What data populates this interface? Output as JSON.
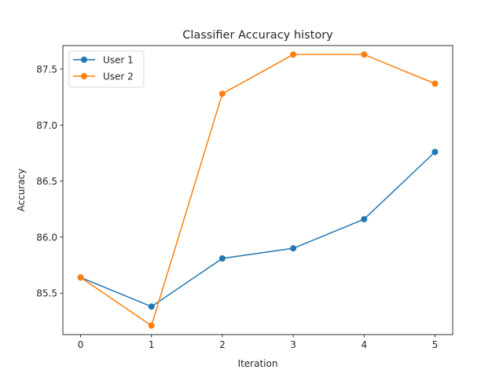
{
  "chart_data": {
    "type": "line",
    "title": "Classifier Accuracy history",
    "xlabel": "Iteration",
    "ylabel": "Accuracy",
    "x": [
      0,
      1,
      2,
      3,
      4,
      5
    ],
    "xticks": [
      "0",
      "1",
      "2",
      "3",
      "4",
      "5"
    ],
    "yticks": [
      "85.5",
      "86.0",
      "86.5",
      "87.0",
      "87.5"
    ],
    "xlim": [
      -0.25,
      5.25
    ],
    "ylim": [
      85.13,
      87.71
    ],
    "grid": false,
    "legend_position": "upper-left",
    "series": [
      {
        "name": "User 1",
        "color": "#1f77b4",
        "values": [
          85.64,
          85.38,
          85.81,
          85.9,
          86.16,
          86.76
        ]
      },
      {
        "name": "User 2",
        "color": "#ff7f0e",
        "values": [
          85.64,
          85.21,
          87.28,
          87.63,
          87.63,
          87.37
        ]
      }
    ]
  }
}
